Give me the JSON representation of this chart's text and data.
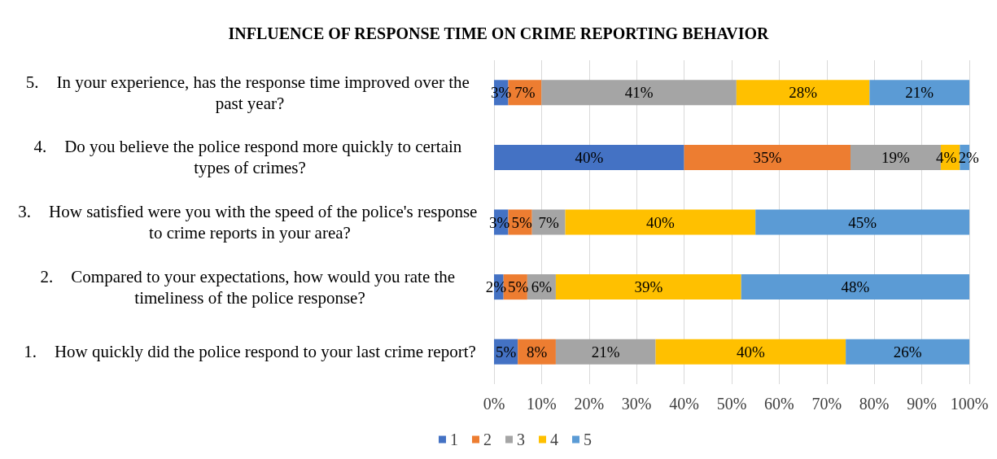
{
  "chart_data": {
    "type": "bar",
    "orientation": "horizontal",
    "stacked": true,
    "title": "INFLUENCE OF RESPONSE TIME ON CRIME REPORTING BEHAVIOR",
    "categories": [
      "5. In your experience, has the response time improved over the past year?",
      "4. Do you believe the police respond more quickly to certain types of crimes?",
      "3. How satisfied were you with the speed of the police's response to crime reports in your area?",
      "2. Compared to your expectations, how would you rate the timeliness of the police response?",
      "1. How quickly did the police respond to your last crime report?"
    ],
    "series": [
      {
        "name": "1",
        "color": "#4472c4",
        "values": [
          3,
          40,
          3,
          2,
          5
        ],
        "value_labels": [
          "3%",
          "40%",
          "3%",
          "2%",
          "5%"
        ]
      },
      {
        "name": "2",
        "color": "#ed7d31",
        "values": [
          7,
          35,
          5,
          5,
          8
        ],
        "value_labels": [
          "7%",
          "35%",
          "5%",
          "5%",
          "8%"
        ]
      },
      {
        "name": "3",
        "color": "#a5a5a5",
        "values": [
          41,
          19,
          7,
          6,
          21
        ],
        "value_labels": [
          "41%",
          "19%",
          "7%",
          "6%",
          "21%"
        ]
      },
      {
        "name": "4",
        "color": "#ffc000",
        "values": [
          28,
          4,
          40,
          39,
          40
        ],
        "value_labels": [
          "28%",
          "4%",
          "40%",
          "39%",
          "40%"
        ]
      },
      {
        "name": "5",
        "color": "#5b9bd5",
        "values": [
          21,
          2,
          45,
          48,
          26
        ],
        "value_labels": [
          "21%",
          "2%",
          "45%",
          "48%",
          "26%"
        ]
      }
    ],
    "xlim": [
      0,
      100
    ],
    "xticks": [
      {
        "value": 0,
        "label": "0%"
      },
      {
        "value": 10,
        "label": "10%"
      },
      {
        "value": 20,
        "label": "20%"
      },
      {
        "value": 30,
        "label": "30%"
      },
      {
        "value": 40,
        "label": "40%"
      },
      {
        "value": 50,
        "label": "50%"
      },
      {
        "value": 60,
        "label": "60%"
      },
      {
        "value": 70,
        "label": "70%"
      },
      {
        "value": 80,
        "label": "80%"
      },
      {
        "value": 90,
        "label": "90%"
      },
      {
        "value": 100,
        "label": "100%"
      }
    ],
    "grid": "x",
    "legend": "bottom"
  }
}
